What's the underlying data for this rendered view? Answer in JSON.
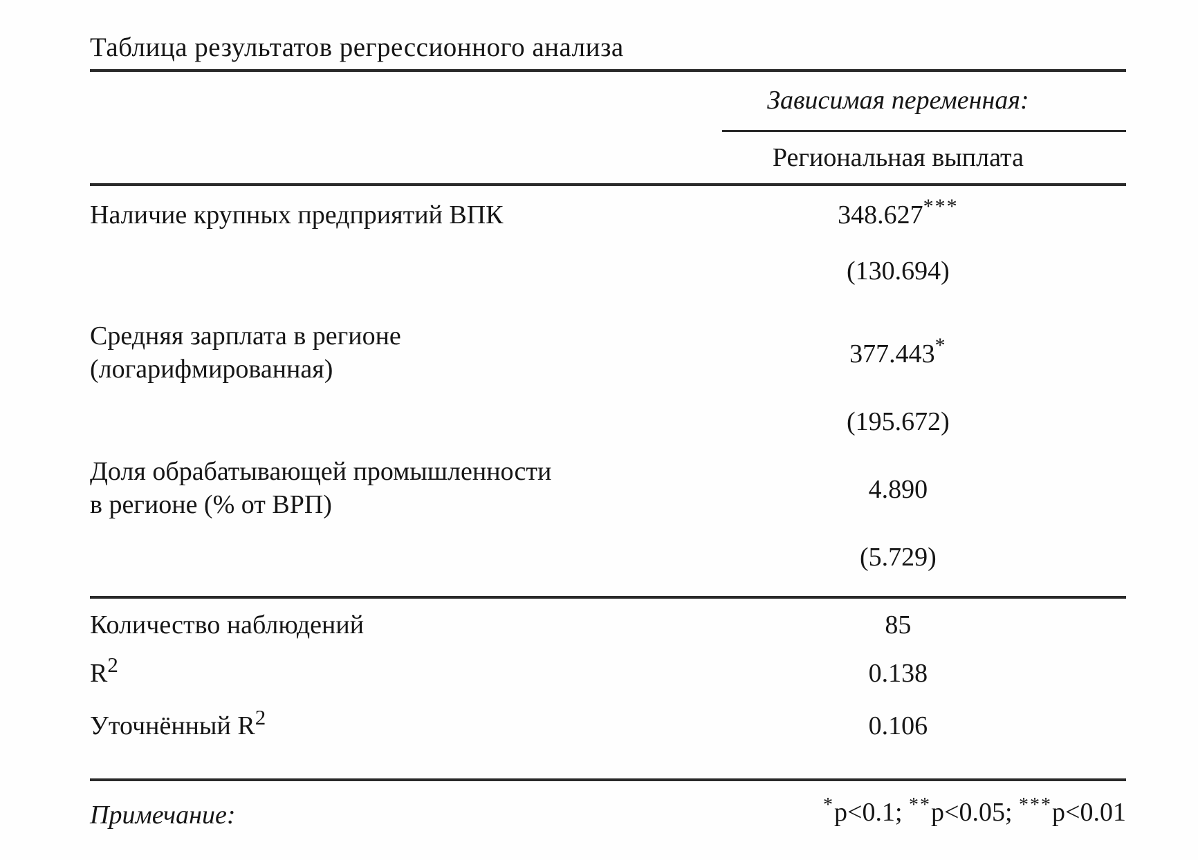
{
  "table": {
    "title": "Таблица результатов регрессионного анализа",
    "header": {
      "dependent_variable_label": "Зависимая переменная:",
      "dependent_variable_name": "Региональная выплата"
    },
    "coefficient_rows": [
      {
        "label_lines": [
          "Наличие крупных предприятий ВПК",
          ""
        ],
        "coefficient": "348.627",
        "stars": "***",
        "std_error": "(130.694)"
      },
      {
        "label_lines": [
          "Средняя зарплата в регионе",
          "(логарифмированная)"
        ],
        "coefficient": "377.443",
        "stars": "*",
        "std_error": "(195.672)"
      },
      {
        "label_lines": [
          "Доля обрабатывающей промышленности",
          "в регионе (% от ВРП)"
        ],
        "coefficient": "4.890",
        "stars": "",
        "std_error": "(5.729)"
      }
    ],
    "summary_rows": [
      {
        "label": "Количество наблюдений",
        "value": "85"
      },
      {
        "label_base": "R",
        "label_sup": "2",
        "value": "0.138"
      },
      {
        "label_base": "Уточнённый R",
        "label_sup": "2",
        "value": "0.106"
      }
    ],
    "note": {
      "label": "Примечание:",
      "parts": [
        {
          "stars": "*",
          "text": "p<0.1; "
        },
        {
          "stars": "**",
          "text": "p<0.05; "
        },
        {
          "stars": "***",
          "text": "p<0.01"
        }
      ]
    }
  }
}
